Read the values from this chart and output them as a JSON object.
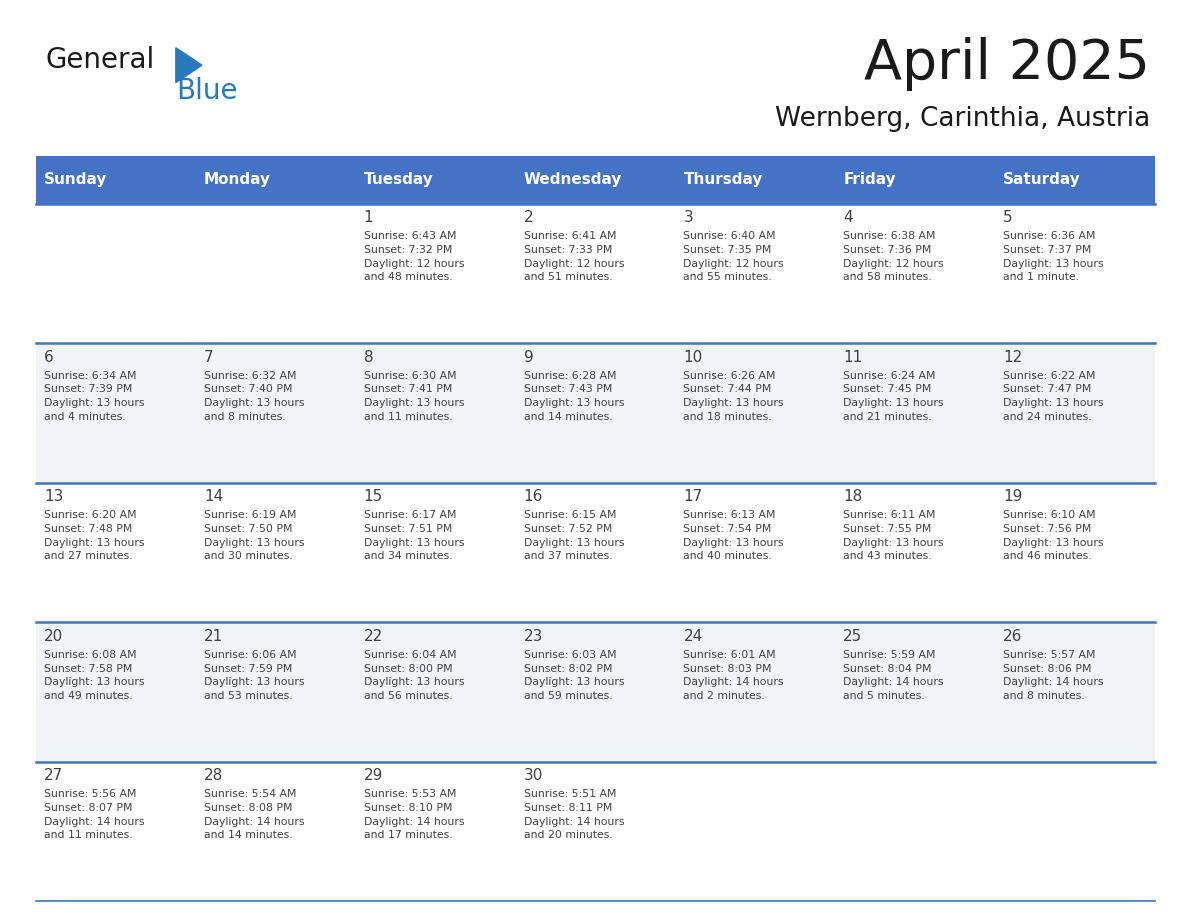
{
  "title": "April 2025",
  "subtitle": "Wernberg, Carinthia, Austria",
  "header_color": "#4472C4",
  "header_text_color": "#FFFFFF",
  "days_of_week": [
    "Sunday",
    "Monday",
    "Tuesday",
    "Wednesday",
    "Thursday",
    "Friday",
    "Saturday"
  ],
  "weeks": [
    [
      {
        "day": "",
        "info": ""
      },
      {
        "day": "",
        "info": ""
      },
      {
        "day": "1",
        "info": "Sunrise: 6:43 AM\nSunset: 7:32 PM\nDaylight: 12 hours\nand 48 minutes."
      },
      {
        "day": "2",
        "info": "Sunrise: 6:41 AM\nSunset: 7:33 PM\nDaylight: 12 hours\nand 51 minutes."
      },
      {
        "day": "3",
        "info": "Sunrise: 6:40 AM\nSunset: 7:35 PM\nDaylight: 12 hours\nand 55 minutes."
      },
      {
        "day": "4",
        "info": "Sunrise: 6:38 AM\nSunset: 7:36 PM\nDaylight: 12 hours\nand 58 minutes."
      },
      {
        "day": "5",
        "info": "Sunrise: 6:36 AM\nSunset: 7:37 PM\nDaylight: 13 hours\nand 1 minute."
      }
    ],
    [
      {
        "day": "6",
        "info": "Sunrise: 6:34 AM\nSunset: 7:39 PM\nDaylight: 13 hours\nand 4 minutes."
      },
      {
        "day": "7",
        "info": "Sunrise: 6:32 AM\nSunset: 7:40 PM\nDaylight: 13 hours\nand 8 minutes."
      },
      {
        "day": "8",
        "info": "Sunrise: 6:30 AM\nSunset: 7:41 PM\nDaylight: 13 hours\nand 11 minutes."
      },
      {
        "day": "9",
        "info": "Sunrise: 6:28 AM\nSunset: 7:43 PM\nDaylight: 13 hours\nand 14 minutes."
      },
      {
        "day": "10",
        "info": "Sunrise: 6:26 AM\nSunset: 7:44 PM\nDaylight: 13 hours\nand 18 minutes."
      },
      {
        "day": "11",
        "info": "Sunrise: 6:24 AM\nSunset: 7:45 PM\nDaylight: 13 hours\nand 21 minutes."
      },
      {
        "day": "12",
        "info": "Sunrise: 6:22 AM\nSunset: 7:47 PM\nDaylight: 13 hours\nand 24 minutes."
      }
    ],
    [
      {
        "day": "13",
        "info": "Sunrise: 6:20 AM\nSunset: 7:48 PM\nDaylight: 13 hours\nand 27 minutes."
      },
      {
        "day": "14",
        "info": "Sunrise: 6:19 AM\nSunset: 7:50 PM\nDaylight: 13 hours\nand 30 minutes."
      },
      {
        "day": "15",
        "info": "Sunrise: 6:17 AM\nSunset: 7:51 PM\nDaylight: 13 hours\nand 34 minutes."
      },
      {
        "day": "16",
        "info": "Sunrise: 6:15 AM\nSunset: 7:52 PM\nDaylight: 13 hours\nand 37 minutes."
      },
      {
        "day": "17",
        "info": "Sunrise: 6:13 AM\nSunset: 7:54 PM\nDaylight: 13 hours\nand 40 minutes."
      },
      {
        "day": "18",
        "info": "Sunrise: 6:11 AM\nSunset: 7:55 PM\nDaylight: 13 hours\nand 43 minutes."
      },
      {
        "day": "19",
        "info": "Sunrise: 6:10 AM\nSunset: 7:56 PM\nDaylight: 13 hours\nand 46 minutes."
      }
    ],
    [
      {
        "day": "20",
        "info": "Sunrise: 6:08 AM\nSunset: 7:58 PM\nDaylight: 13 hours\nand 49 minutes."
      },
      {
        "day": "21",
        "info": "Sunrise: 6:06 AM\nSunset: 7:59 PM\nDaylight: 13 hours\nand 53 minutes."
      },
      {
        "day": "22",
        "info": "Sunrise: 6:04 AM\nSunset: 8:00 PM\nDaylight: 13 hours\nand 56 minutes."
      },
      {
        "day": "23",
        "info": "Sunrise: 6:03 AM\nSunset: 8:02 PM\nDaylight: 13 hours\nand 59 minutes."
      },
      {
        "day": "24",
        "info": "Sunrise: 6:01 AM\nSunset: 8:03 PM\nDaylight: 14 hours\nand 2 minutes."
      },
      {
        "day": "25",
        "info": "Sunrise: 5:59 AM\nSunset: 8:04 PM\nDaylight: 14 hours\nand 5 minutes."
      },
      {
        "day": "26",
        "info": "Sunrise: 5:57 AM\nSunset: 8:06 PM\nDaylight: 14 hours\nand 8 minutes."
      }
    ],
    [
      {
        "day": "27",
        "info": "Sunrise: 5:56 AM\nSunset: 8:07 PM\nDaylight: 14 hours\nand 11 minutes."
      },
      {
        "day": "28",
        "info": "Sunrise: 5:54 AM\nSunset: 8:08 PM\nDaylight: 14 hours\nand 14 minutes."
      },
      {
        "day": "29",
        "info": "Sunrise: 5:53 AM\nSunset: 8:10 PM\nDaylight: 14 hours\nand 17 minutes."
      },
      {
        "day": "30",
        "info": "Sunrise: 5:51 AM\nSunset: 8:11 PM\nDaylight: 14 hours\nand 20 minutes."
      },
      {
        "day": "",
        "info": ""
      },
      {
        "day": "",
        "info": ""
      },
      {
        "day": "",
        "info": ""
      }
    ]
  ],
  "logo_color_general": "#1a1a1a",
  "logo_color_blue": "#2779BD",
  "logo_triangle_color": "#2779BD",
  "alt_row_color": "#F0F4F8",
  "white_row_color": "#FFFFFF",
  "cell_border_color": "#4472C4",
  "text_color": "#404040",
  "figwidth": 11.88,
  "figheight": 9.18,
  "dpi": 100
}
